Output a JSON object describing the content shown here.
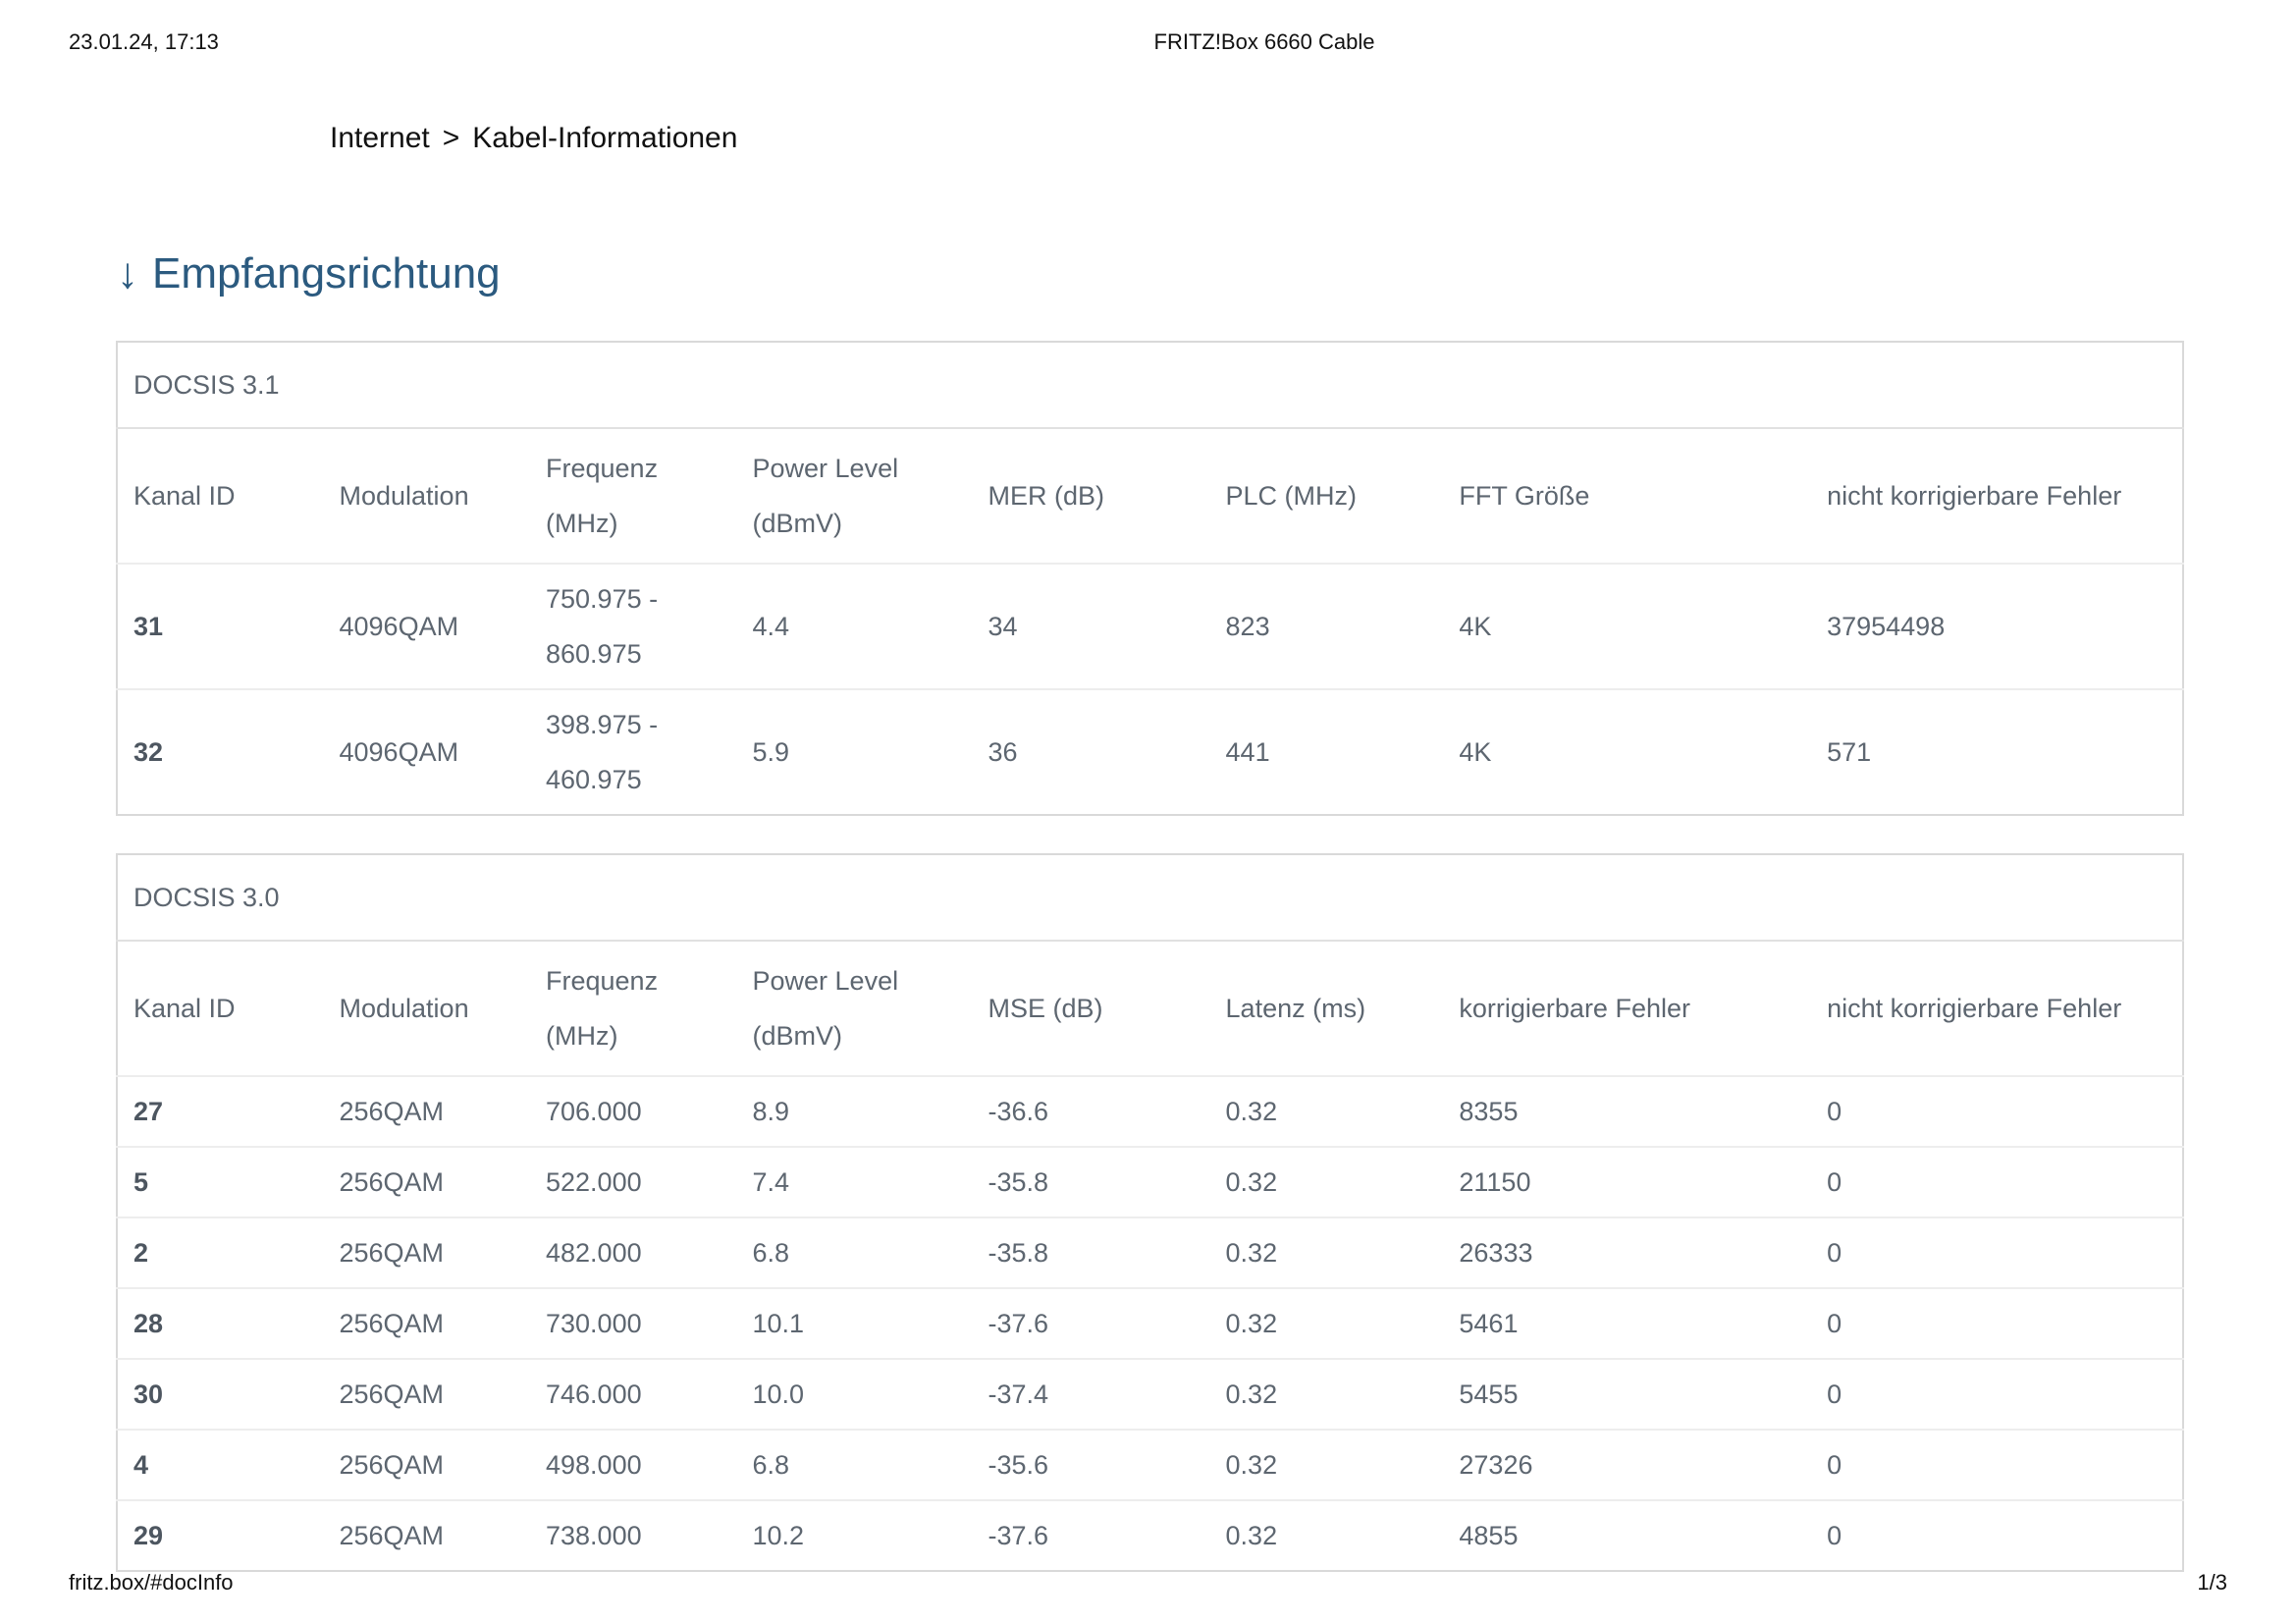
{
  "print_header": {
    "timestamp": "23.01.24, 17:13",
    "title": "FRITZ!Box 6660 Cable"
  },
  "breadcrumb": {
    "items": [
      "Internet",
      "Kabel-Informationen"
    ],
    "separator": ">"
  },
  "section": {
    "arrow": "↓",
    "title": "Empfangsrichtung"
  },
  "colors": {
    "heading_blue": "#2b5a7f",
    "table_text": "#5d6670",
    "kanal_bold": "#4d5660",
    "border_outer": "#d9d9d9",
    "border_row": "#ededed"
  },
  "tables": [
    {
      "caption": "DOCSIS 3.1",
      "columns": [
        "Kanal ID",
        "Modulation",
        "Frequenz (MHz)",
        "Power Level (dBmV)",
        "MER (dB)",
        "PLC (MHz)",
        "FFT Größe",
        "nicht korrigierbare Fehler"
      ],
      "rows": [
        [
          "31",
          "4096QAM",
          "750.975 - 860.975",
          "4.4",
          "34",
          "823",
          "4K",
          "37954498"
        ],
        [
          "32",
          "4096QAM",
          "398.975 - 460.975",
          "5.9",
          "36",
          "441",
          "4K",
          "571"
        ]
      ]
    },
    {
      "caption": "DOCSIS 3.0",
      "columns": [
        "Kanal ID",
        "Modulation",
        "Frequenz (MHz)",
        "Power Level (dBmV)",
        "MSE (dB)",
        "Latenz (ms)",
        "korrigierbare Fehler",
        "nicht korrigierbare Fehler"
      ],
      "rows": [
        [
          "27",
          "256QAM",
          "706.000",
          "8.9",
          "-36.6",
          "0.32",
          "8355",
          "0"
        ],
        [
          "5",
          "256QAM",
          "522.000",
          "7.4",
          "-35.8",
          "0.32",
          "21150",
          "0"
        ],
        [
          "2",
          "256QAM",
          "482.000",
          "6.8",
          "-35.8",
          "0.32",
          "26333",
          "0"
        ],
        [
          "28",
          "256QAM",
          "730.000",
          "10.1",
          "-37.6",
          "0.32",
          "5461",
          "0"
        ],
        [
          "30",
          "256QAM",
          "746.000",
          "10.0",
          "-37.4",
          "0.32",
          "5455",
          "0"
        ],
        [
          "4",
          "256QAM",
          "498.000",
          "6.8",
          "-35.6",
          "0.32",
          "27326",
          "0"
        ],
        [
          "29",
          "256QAM",
          "738.000",
          "10.2",
          "-37.6",
          "0.32",
          "4855",
          "0"
        ]
      ]
    }
  ],
  "print_footer": {
    "url": "fritz.box/#docInfo",
    "page_indicator": "1/3"
  }
}
